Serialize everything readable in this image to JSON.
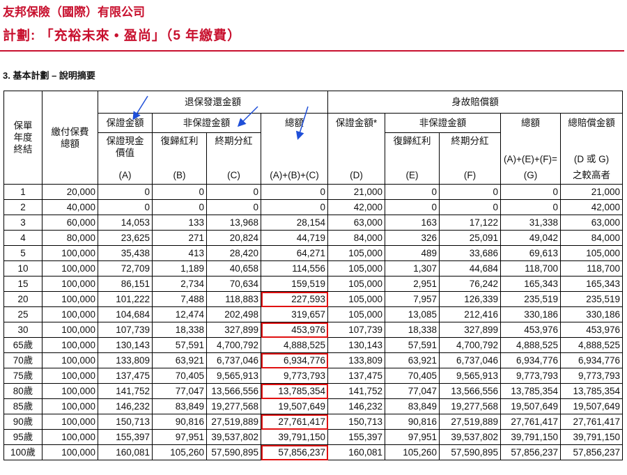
{
  "header": {
    "company": "友邦保險（國際）有限公司",
    "plan_title": "計劃: 「充裕未來 • 盈尚」（5 年繳費）",
    "section_title": "3.  基本計劃 – 說明摘要"
  },
  "table": {
    "col_year": "保單\n年度\n終結",
    "col_premium": "繳付保費\n總額",
    "group_surrender": "退保發還金額",
    "group_death": "身故賠償額",
    "sub_guaranteed": "保證金額",
    "sub_nonguaranteed": "非保證金額",
    "col_a": "保證現金\n價值",
    "col_b": "復歸紅利",
    "col_c": "終期分紅",
    "col_abc": "總額",
    "col_d": "保證金額*",
    "col_e": "復歸紅利",
    "col_f": "終期分紅",
    "col_g": "總額",
    "col_total": "總賠償金額",
    "tag_a": "(A)",
    "tag_b": "(B)",
    "tag_c": "(C)",
    "tag_abc": "(A)+(B)+(C)",
    "tag_d": "(D)",
    "tag_e": "(E)",
    "tag_f": "(F)",
    "tag_g1": "(A)+(E)+(F)=",
    "tag_g2": "(G)",
    "tag_t1": "(D 或 G)",
    "tag_t2": "之較高者",
    "rows": [
      [
        "1",
        "20,000",
        "0",
        "0",
        "0",
        "0",
        "21,000",
        "0",
        "0",
        "0",
        "21,000"
      ],
      [
        "2",
        "40,000",
        "0",
        "0",
        "0",
        "0",
        "42,000",
        "0",
        "0",
        "0",
        "42,000"
      ],
      [
        "3",
        "60,000",
        "14,053",
        "133",
        "13,968",
        "28,154",
        "63,000",
        "163",
        "17,122",
        "31,338",
        "63,000"
      ],
      [
        "4",
        "80,000",
        "23,625",
        "271",
        "20,824",
        "44,719",
        "84,000",
        "326",
        "25,091",
        "49,042",
        "84,000"
      ],
      [
        "5",
        "100,000",
        "35,438",
        "413",
        "28,420",
        "64,271",
        "105,000",
        "489",
        "33,686",
        "69,613",
        "105,000"
      ],
      [
        "10",
        "100,000",
        "72,709",
        "1,189",
        "40,658",
        "114,556",
        "105,000",
        "1,307",
        "44,684",
        "118,700",
        "118,700"
      ],
      [
        "15",
        "100,000",
        "86,151",
        "2,734",
        "70,634",
        "159,519",
        "105,000",
        "2,951",
        "76,242",
        "165,343",
        "165,343"
      ],
      [
        "20",
        "100,000",
        "101,222",
        "7,488",
        "118,883",
        "227,593",
        "105,000",
        "7,957",
        "126,339",
        "235,519",
        "235,519"
      ],
      [
        "25",
        "100,000",
        "104,684",
        "12,474",
        "202,498",
        "319,657",
        "105,000",
        "13,085",
        "212,416",
        "330,186",
        "330,186"
      ],
      [
        "30",
        "100,000",
        "107,739",
        "18,338",
        "327,899",
        "453,976",
        "107,739",
        "18,338",
        "327,899",
        "453,976",
        "453,976"
      ],
      [
        "65歲",
        "100,000",
        "130,143",
        "57,591",
        "4,700,792",
        "4,888,525",
        "130,143",
        "57,591",
        "4,700,792",
        "4,888,525",
        "4,888,525"
      ],
      [
        "70歲",
        "100,000",
        "133,809",
        "63,921",
        "6,737,046",
        "6,934,776",
        "133,809",
        "63,921",
        "6,737,046",
        "6,934,776",
        "6,934,776"
      ],
      [
        "75歲",
        "100,000",
        "137,475",
        "70,405",
        "9,565,913",
        "9,773,793",
        "137,475",
        "70,405",
        "9,565,913",
        "9,773,793",
        "9,773,793"
      ],
      [
        "80歲",
        "100,000",
        "141,752",
        "77,047",
        "13,566,556",
        "13,785,354",
        "141,752",
        "77,047",
        "13,566,556",
        "13,785,354",
        "13,785,354"
      ],
      [
        "85歲",
        "100,000",
        "146,232",
        "83,849",
        "19,277,568",
        "19,507,649",
        "146,232",
        "83,849",
        "19,277,568",
        "19,507,649",
        "19,507,649"
      ],
      [
        "90歲",
        "100,000",
        "150,713",
        "90,816",
        "27,519,889",
        "27,761,417",
        "150,713",
        "90,816",
        "27,519,889",
        "27,761,417",
        "27,761,417"
      ],
      [
        "95歲",
        "100,000",
        "155,397",
        "97,951",
        "39,537,802",
        "39,791,150",
        "155,397",
        "97,951",
        "39,537,802",
        "39,791,150",
        "39,791,150"
      ],
      [
        "100歲",
        "100,000",
        "160,081",
        "105,260",
        "57,590,895",
        "57,856,237",
        "160,081",
        "105,260",
        "57,590,895",
        "57,856,237",
        "57,856,237"
      ]
    ]
  },
  "colors": {
    "brand": "#c8102e",
    "highlight_box": "#e01010",
    "arrow": "#1f4fd8"
  }
}
